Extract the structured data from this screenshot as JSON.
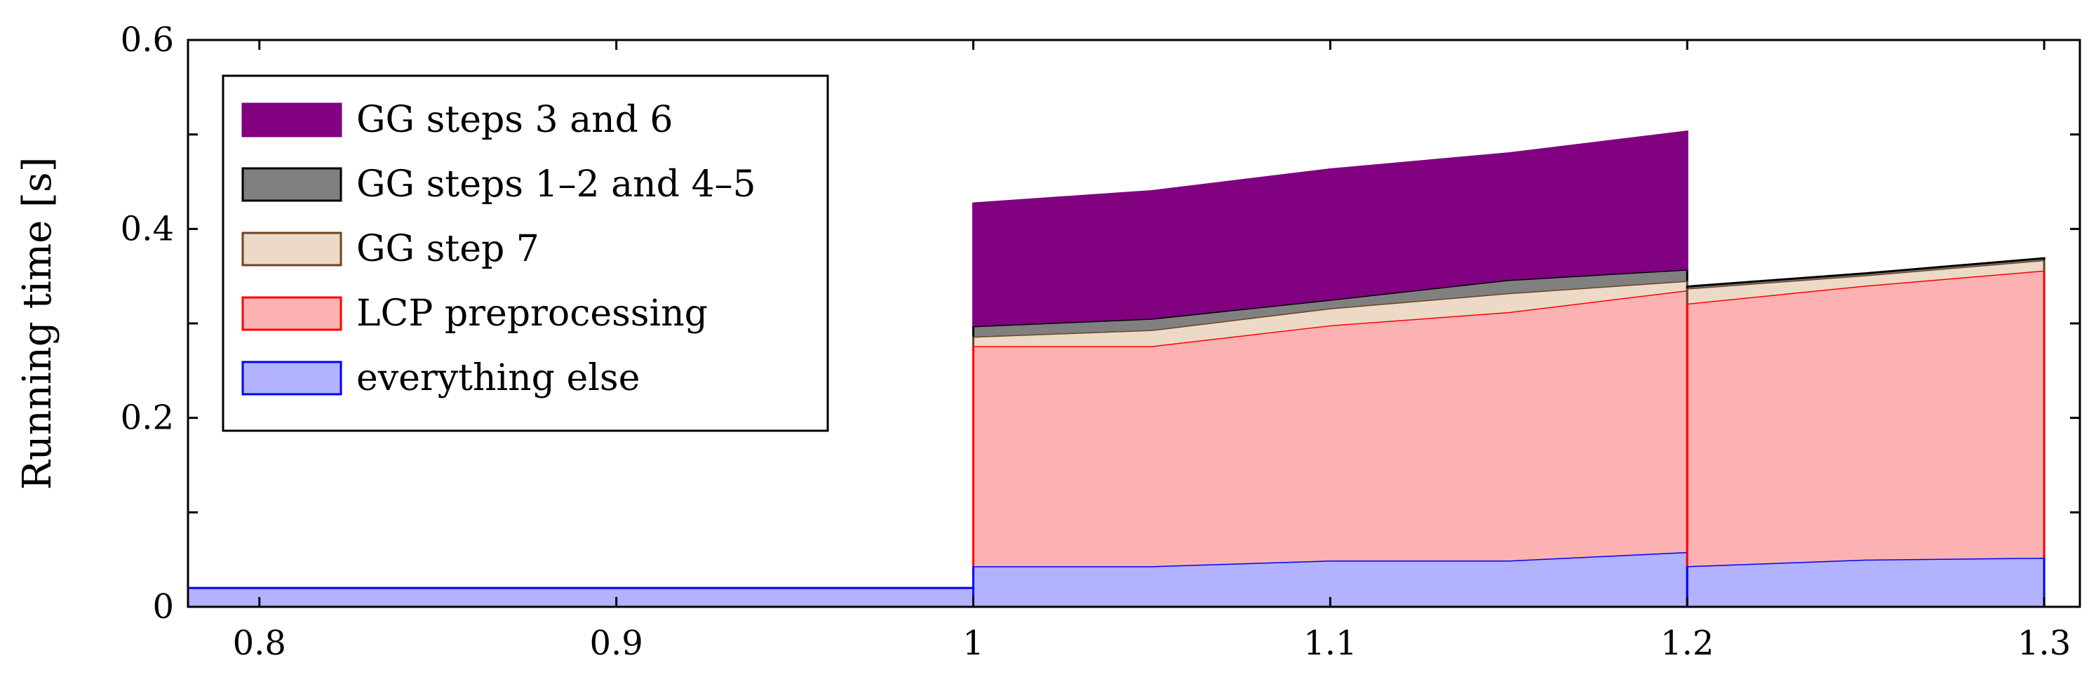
{
  "chart_data": {
    "type": "area",
    "stacked": true,
    "title": "",
    "xlabel": "",
    "ylabel": "Running time [s]",
    "xlim": [
      0.78,
      1.31
    ],
    "ylim": [
      0,
      0.6
    ],
    "xticks": [
      "0.8",
      "0.9",
      "1",
      "1.1",
      "1.2",
      "1.3"
    ],
    "yticks": [
      "0",
      "0.2",
      "0.4",
      "0.6"
    ],
    "grid": false,
    "legend_position": "top-left",
    "segments": [
      {
        "x": [
          0.78,
          1.0
        ],
        "totals": {
          "everything_else": [
            0.02,
            0.02
          ]
        }
      },
      {
        "x": [
          1.0,
          1.05,
          1.1,
          1.15,
          1.2
        ],
        "values": {
          "everything_else": [
            0.043,
            0.043,
            0.049,
            0.049,
            0.058
          ],
          "lcp_preprocessing": [
            0.233,
            0.233,
            0.249,
            0.263,
            0.277
          ],
          "gg_step_7": [
            0.01,
            0.017,
            0.018,
            0.02,
            0.01
          ],
          "gg_steps_1_2_4_5": [
            0.011,
            0.012,
            0.009,
            0.014,
            0.012
          ],
          "gg_steps_3_6": [
            0.13,
            0.135,
            0.138,
            0.134,
            0.146
          ]
        }
      },
      {
        "x": [
          1.2,
          1.25,
          1.3
        ],
        "values": {
          "everything_else": [
            0.043,
            0.05,
            0.052
          ],
          "lcp_preprocessing": [
            0.278,
            0.29,
            0.304
          ],
          "gg_step_7": [
            0.016,
            0.011,
            0.011
          ],
          "gg_steps_1_2_4_5": [
            0.002,
            0.002,
            0.002
          ],
          "gg_steps_3_6": [
            0.0,
            0.0,
            0.0
          ]
        }
      }
    ],
    "series": [
      {
        "key": "gg_steps_3_6",
        "name": "GG steps 3 and 6",
        "fill": "#800080",
        "stroke": "#800080"
      },
      {
        "key": "gg_steps_1_2_4_5",
        "name": "GG steps 1–2 and 4–5",
        "fill": "#808080",
        "stroke": "#000000"
      },
      {
        "key": "gg_step_7",
        "name": "GG step 7",
        "fill": "#ecd9c6",
        "stroke": "#6b4423"
      },
      {
        "key": "lcp_preprocessing",
        "name": "LCP preprocessing",
        "fill": "#fcb2b2",
        "stroke": "#ff0000"
      },
      {
        "key": "everything_else",
        "name": "everything else",
        "fill": "#b2b2ff",
        "stroke": "#0000ff"
      }
    ]
  }
}
